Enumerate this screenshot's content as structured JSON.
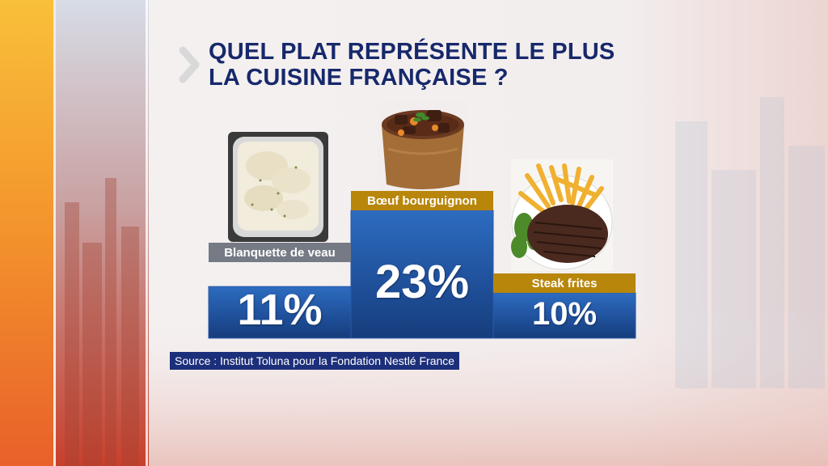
{
  "header": {
    "title_line1": "QUEL PLAT REPRÉSENTE LE PLUS",
    "title_line2": "LA CUISINE FRANÇAISE ?"
  },
  "chart_data": {
    "type": "bar",
    "title": "QUEL PLAT REPRÉSENTE LE PLUS LA CUISINE FRANÇAISE ?",
    "categories": [
      "Blanquette de veau",
      "Bœuf bourguignon",
      "Steak frites"
    ],
    "values": [
      11,
      23,
      10
    ],
    "value_labels": [
      "11%",
      "23%",
      "10%"
    ],
    "unit": "%",
    "grid": false,
    "legend": "none"
  },
  "source": "Source : Institut Toluna pour la Fondation Nestlé France",
  "colors": {
    "title": "#17296b",
    "bar": "#1f4f99",
    "label_gray": "#757a85",
    "label_gold": "#b8860b",
    "source_bg": "#1c2f7a",
    "accent_orange": "#f5a623",
    "accent_red": "#e0463c"
  },
  "icons": [
    "chevron-right-icon",
    "blanquette-photo",
    "bourguignon-photo",
    "steak-frites-photo"
  ]
}
